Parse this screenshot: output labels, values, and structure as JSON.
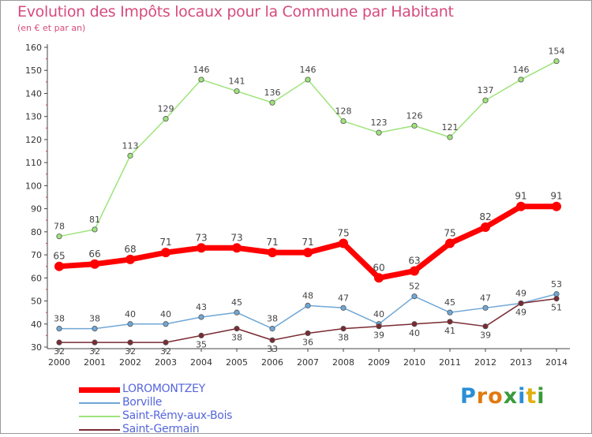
{
  "header": {
    "title": "Evolution des Impôts locaux pour la Commune par Habitant",
    "subtitle": "(en € et par an)"
  },
  "logo": {
    "text": "Proxiti",
    "colors": [
      "#2a8fd6",
      "#e07a10",
      "#e07a10",
      "#3a9a3a",
      "#2a8fd6",
      "#e0b010",
      "#3a9a3a"
    ]
  },
  "chart_data": {
    "type": "line",
    "x": [
      "2000",
      "2001",
      "2002",
      "2003",
      "2004",
      "2005",
      "2006",
      "2007",
      "2008",
      "2009",
      "2010",
      "2011",
      "2012",
      "2013",
      "2014"
    ],
    "ylim": [
      30,
      160
    ],
    "yticks": [
      30,
      40,
      50,
      60,
      70,
      80,
      90,
      100,
      110,
      120,
      130,
      140,
      150,
      160
    ],
    "grid": false,
    "legend_position": "bottom-left",
    "series": [
      {
        "name": "LOROMONTZEY",
        "color": "#ff0000",
        "values": [
          65,
          66,
          68,
          71,
          73,
          73,
          71,
          71,
          75,
          60,
          63,
          75,
          82,
          91,
          91
        ]
      },
      {
        "name": "Borville",
        "color": "#6fa7d6",
        "values": [
          38,
          38,
          40,
          40,
          43,
          45,
          38,
          48,
          47,
          40,
          52,
          45,
          47,
          49,
          53
        ]
      },
      {
        "name": "Saint-Rémy-aux-Bois",
        "color": "#9ee37b",
        "values": [
          78,
          81,
          113,
          129,
          146,
          141,
          136,
          146,
          128,
          123,
          126,
          121,
          137,
          146,
          154
        ]
      },
      {
        "name": "Saint-Germain",
        "color": "#7a2a32",
        "values": [
          32,
          32,
          32,
          32,
          35,
          38,
          33,
          36,
          38,
          39,
          40,
          41,
          39,
          49,
          51
        ]
      }
    ]
  }
}
